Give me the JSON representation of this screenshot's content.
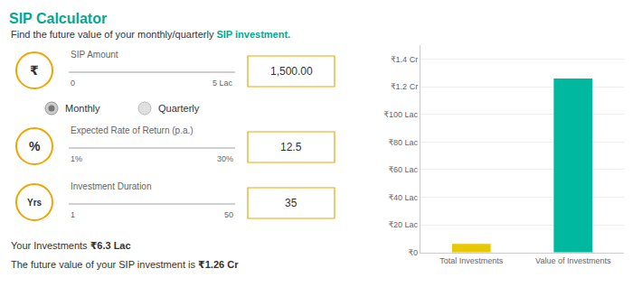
{
  "chart_data": {
    "type": "bar",
    "title": "SIP Calculator",
    "categories": [
      "Total Investments",
      "Value of Investments"
    ],
    "values": [
      6.3,
      126
    ],
    "colors": [
      "#e8c800",
      "#00b8a0"
    ],
    "ylim": [
      0,
      150
    ],
    "yticks": [
      {
        "value": 0,
        "label": "₹0"
      },
      {
        "value": 20,
        "label": "₹20 Lac"
      },
      {
        "value": 40,
        "label": "₹40 Lac"
      },
      {
        "value": 60,
        "label": "₹60 Lac"
      },
      {
        "value": 80,
        "label": "₹80 Lac"
      },
      {
        "value": 100,
        "label": "₹100 Lac"
      },
      {
        "value": 120,
        "label": "₹1.2 Cr"
      },
      {
        "value": 140,
        "label": "₹1.4 Cr"
      }
    ],
    "grid": true,
    "annotations": [
      "Find the future value of your monthly/quarterly",
      "SIP investment.",
      "₹",
      "SIP Amount",
      "0",
      "5 Lac",
      "1,500.00",
      "Monthly",
      "Quarterly",
      "%",
      "Expected Rate of Return (p.a.)",
      "1%",
      "30%",
      "12.5",
      "Yrs",
      "Investment Duration",
      "1",
      "50",
      "35",
      "Your Investments",
      "₹6.3 Lac",
      "The future value of your SIP investment is",
      "₹1.26 Cr"
    ]
  }
}
